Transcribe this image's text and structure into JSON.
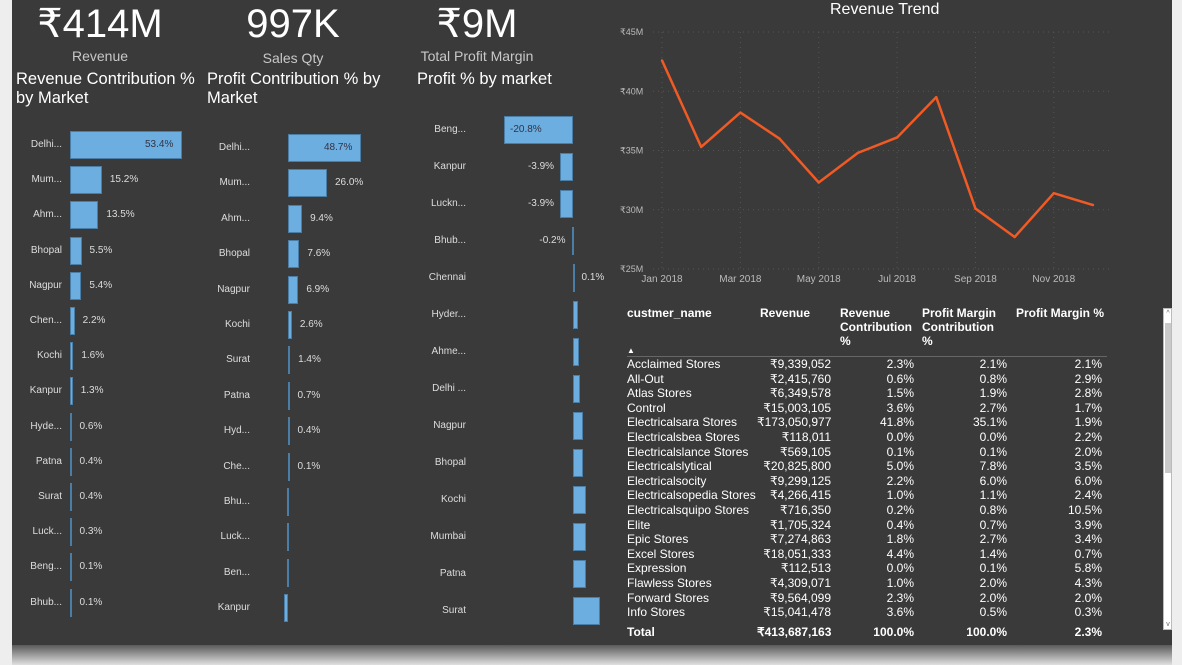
{
  "kpis": [
    {
      "value": "₹414M",
      "label": "Revenue"
    },
    {
      "value": "997K",
      "label": "Sales Qty"
    },
    {
      "value": "₹9M",
      "label": "Total Profit Margin"
    }
  ],
  "colors": {
    "bar": "#6caee0",
    "line": "#f05a24",
    "background": "#3a3a3a"
  },
  "chart_data": [
    {
      "type": "bar",
      "orientation": "horizontal",
      "title": "Revenue Contribution % by Market",
      "categories": [
        "Delhi...",
        "Mum...",
        "Ahm...",
        "Bhopal",
        "Nagpur",
        "Chen...",
        "Kochi",
        "Kanpur",
        "Hyde...",
        "Patna",
        "Surat",
        "Luck...",
        "Beng...",
        "Bhub..."
      ],
      "values": [
        53.4,
        15.2,
        13.5,
        5.5,
        5.4,
        2.2,
        1.6,
        1.3,
        0.6,
        0.4,
        0.4,
        0.3,
        0.1,
        0.1
      ],
      "labels": [
        "53.4%",
        "15.2%",
        "13.5%",
        "5.5%",
        "5.4%",
        "2.2%",
        "1.6%",
        "1.3%",
        "0.6%",
        "0.4%",
        "0.4%",
        "0.3%",
        "0.1%",
        "0.1%"
      ]
    },
    {
      "type": "bar",
      "orientation": "horizontal",
      "title": "Profit Contribution % by Market",
      "categories": [
        "Delhi...",
        "Mum...",
        "Ahm...",
        "Bhopal",
        "Nagpur",
        "Kochi",
        "Surat",
        "Patna",
        "Hyd...",
        "Che...",
        "Bhu...",
        "Luck...",
        "Ben...",
        "Kanpur"
      ],
      "values": [
        48.7,
        26.0,
        9.4,
        7.6,
        6.9,
        2.6,
        1.4,
        0.7,
        0.4,
        0.1,
        -0.1,
        -0.1,
        -0.2,
        -2.7
      ],
      "labels": [
        "48.7%",
        "26.0%",
        "9.4%",
        "7.6%",
        "6.9%",
        "2.6%",
        "1.4%",
        "0.7%",
        "0.4%",
        "0.1%",
        "",
        "",
        "",
        ""
      ]
    },
    {
      "type": "bar",
      "orientation": "horizontal",
      "title": "Profit % by market",
      "categories": [
        "Beng...",
        "Kanpur",
        "Luckn...",
        "Bhub...",
        "Chennai",
        "Hyder...",
        "Ahme...",
        "Delhi ...",
        "Nagpur",
        "Bhopal",
        "Kochi",
        "Mumbai",
        "Patna",
        "Surat"
      ],
      "values": [
        -20.8,
        -3.9,
        -3.9,
        -0.2,
        0.1,
        1.5,
        1.8,
        2.1,
        2.9,
        3.1,
        3.8,
        3.9,
        3.9,
        8.0
      ],
      "labels": [
        "-20.8%",
        "-3.9%",
        "-3.9%",
        "-0.2%",
        "0.1%",
        "",
        "",
        "",
        "",
        "",
        "",
        "",
        "",
        ""
      ]
    },
    {
      "type": "line",
      "title": "Revenue Trend",
      "x": [
        "Jan 2018",
        "Feb 2018",
        "Mar 2018",
        "Apr 2018",
        "May 2018",
        "Jun 2018",
        "Jul 2018",
        "Aug 2018",
        "Sep 2018",
        "Oct 2018",
        "Nov 2018",
        "Dec 2018"
      ],
      "y": [
        42.6,
        35.3,
        38.2,
        36.0,
        32.3,
        34.8,
        36.1,
        39.5,
        30.1,
        27.7,
        31.4,
        30.4
      ],
      "y_unit": "₹M",
      "ylim": [
        25,
        45
      ],
      "grid": true,
      "yticks": [
        "₹45M",
        "₹40M",
        "₹35M",
        "₹30M",
        "₹25M"
      ],
      "xticks": [
        "Jan 2018",
        "Mar 2018",
        "May 2018",
        "Jul 2018",
        "Sep 2018",
        "Nov 2018"
      ]
    },
    {
      "type": "table",
      "columns": [
        "custmer_name",
        "Revenue",
        "Revenue Contribution %",
        "Profit Margin Contribution %",
        "Profit Margin %"
      ],
      "rows": [
        [
          "Acclaimed Stores",
          "₹9,339,052",
          "2.3%",
          "2.1%",
          "2.1%"
        ],
        [
          "All-Out",
          "₹2,415,760",
          "0.6%",
          "0.8%",
          "2.9%"
        ],
        [
          "Atlas Stores",
          "₹6,349,578",
          "1.5%",
          "1.9%",
          "2.8%"
        ],
        [
          "Control",
          "₹15,003,105",
          "3.6%",
          "2.7%",
          "1.7%"
        ],
        [
          "Electricalsara Stores",
          "₹173,050,977",
          "41.8%",
          "35.1%",
          "1.9%"
        ],
        [
          "Electricalsbea Stores",
          "₹118,011",
          "0.0%",
          "0.0%",
          "2.2%"
        ],
        [
          "Electricalslance Stores",
          "₹569,105",
          "0.1%",
          "0.1%",
          "2.0%"
        ],
        [
          "Electricalslytical",
          "₹20,825,800",
          "5.0%",
          "7.8%",
          "3.5%"
        ],
        [
          "Electricalsocity",
          "₹9,299,125",
          "2.2%",
          "6.0%",
          "6.0%"
        ],
        [
          "Electricalsopedia Stores",
          "₹4,266,415",
          "1.0%",
          "1.1%",
          "2.4%"
        ],
        [
          "Electricalsquipo Stores",
          "₹716,350",
          "0.2%",
          "0.8%",
          "10.5%"
        ],
        [
          "Elite",
          "₹1,705,324",
          "0.4%",
          "0.7%",
          "3.9%"
        ],
        [
          "Epic Stores",
          "₹7,274,863",
          "1.8%",
          "2.7%",
          "3.4%"
        ],
        [
          "Excel Stores",
          "₹18,051,333",
          "4.4%",
          "1.4%",
          "0.7%"
        ],
        [
          "Expression",
          "₹112,513",
          "0.0%",
          "0.1%",
          "5.8%"
        ],
        [
          "Flawless Stores",
          "₹4,309,071",
          "1.0%",
          "2.0%",
          "4.3%"
        ],
        [
          "Forward Stores",
          "₹9,564,099",
          "2.3%",
          "2.0%",
          "2.0%"
        ],
        [
          "Info Stores",
          "₹15,041,478",
          "3.6%",
          "0.5%",
          "0.3%"
        ]
      ],
      "total": [
        "Total",
        "₹413,687,163",
        "100.0%",
        "100.0%",
        "2.3%"
      ]
    }
  ]
}
